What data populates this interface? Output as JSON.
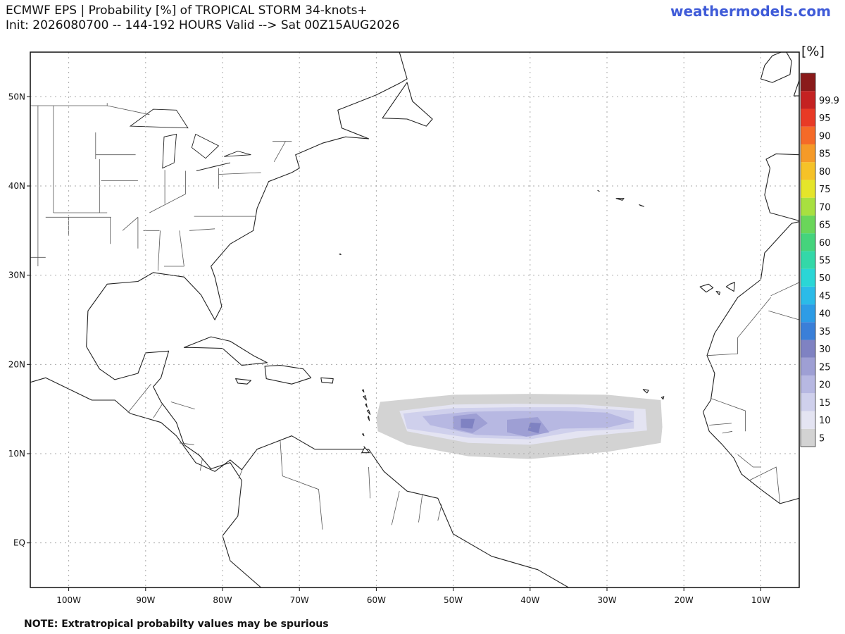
{
  "header": {
    "title_line1": "ECMWF EPS | Probability [%] of TROPICAL STORM 34-knots+",
    "title_line2": "Init: 2026080700 -- 144-192 HOURS Valid --> Sat 00Z15AUG2026",
    "site": "weathermodels.com"
  },
  "footer": {
    "note": "NOTE: Extratropical probabilty values may be spurious"
  },
  "legend": {
    "unit": "[%]",
    "levels": [
      {
        "label": "5",
        "color": "#d3d3d3"
      },
      {
        "label": "10",
        "color": "#e4e4f2"
      },
      {
        "label": "15",
        "color": "#cfd0ec"
      },
      {
        "label": "20",
        "color": "#b7b8e2"
      },
      {
        "label": "25",
        "color": "#9e9fd4"
      },
      {
        "label": "30",
        "color": "#7f82c2"
      },
      {
        "label": "35",
        "color": "#3a7fd8"
      },
      {
        "label": "40",
        "color": "#2d9ce6"
      },
      {
        "label": "45",
        "color": "#2bbbe8"
      },
      {
        "label": "50",
        "color": "#2ad6d6"
      },
      {
        "label": "55",
        "color": "#33d8a8"
      },
      {
        "label": "60",
        "color": "#45d47c"
      },
      {
        "label": "65",
        "color": "#6ad65a"
      },
      {
        "label": "70",
        "color": "#a8e040"
      },
      {
        "label": "75",
        "color": "#e5e52a"
      },
      {
        "label": "80",
        "color": "#f5c228"
      },
      {
        "label": "85",
        "color": "#f59a28"
      },
      {
        "label": "90",
        "color": "#f56a28"
      },
      {
        "label": "95",
        "color": "#e83a26"
      },
      {
        "label": "99.9",
        "color": "#c42222"
      },
      {
        "label": "",
        "color": "#8a1a1a"
      }
    ]
  },
  "map": {
    "lon_range": [
      -105,
      -5
    ],
    "lat_range": [
      -5,
      55
    ],
    "lon_labels": [
      "100W",
      "90W",
      "80W",
      "70W",
      "60W",
      "50W",
      "40W",
      "30W",
      "20W",
      "10W"
    ],
    "lat_labels": [
      "EQ",
      "10N",
      "20N",
      "30N",
      "40N",
      "50N"
    ],
    "probability_field": {
      "level_5": [
        [
          -59.5,
          15.8
        ],
        [
          -50,
          16.6
        ],
        [
          -40,
          16.7
        ],
        [
          -30,
          16.6
        ],
        [
          -23,
          16
        ],
        [
          -22.8,
          13
        ],
        [
          -23,
          11.2
        ],
        [
          -30,
          10.2
        ],
        [
          -40,
          9.4
        ],
        [
          -48,
          9.7
        ],
        [
          -56,
          11
        ],
        [
          -59.8,
          12.5
        ],
        [
          -60,
          14
        ]
      ],
      "level_10": [
        [
          -57,
          14.8
        ],
        [
          -50,
          15.5
        ],
        [
          -42,
          15.6
        ],
        [
          -33,
          15.5
        ],
        [
          -25,
          15
        ],
        [
          -24.8,
          12.6
        ],
        [
          -32,
          12
        ],
        [
          -40,
          11
        ],
        [
          -48,
          11.2
        ],
        [
          -56,
          12.5
        ]
      ],
      "level_15": [
        [
          -56.5,
          14.5
        ],
        [
          -50,
          15.1
        ],
        [
          -42,
          15.2
        ],
        [
          -34,
          15.2
        ],
        [
          -26.5,
          14.8
        ],
        [
          -26.5,
          12.8
        ],
        [
          -34,
          12.5
        ],
        [
          -40,
          11.6
        ],
        [
          -48,
          11.8
        ],
        [
          -56,
          12.8
        ]
      ],
      "level_20": [
        [
          -54,
          14.2
        ],
        [
          -48,
          14.7
        ],
        [
          -42,
          14.8
        ],
        [
          -36,
          14.8
        ],
        [
          -30,
          14.6
        ],
        [
          -26.5,
          13.6
        ],
        [
          -30,
          12.9
        ],
        [
          -36,
          12.8
        ],
        [
          -40,
          11.9
        ],
        [
          -47,
          12.1
        ],
        [
          -53,
          13.2
        ]
      ],
      "level_25": [
        [
          [
            -50,
            14.2
          ],
          [
            -47,
            14.5
          ],
          [
            -45.5,
            13.4
          ],
          [
            -47.5,
            12.3
          ],
          [
            -50,
            12.8
          ]
        ],
        [
          [
            -43,
            13.8
          ],
          [
            -39,
            14.1
          ],
          [
            -37.5,
            12.4
          ],
          [
            -40.5,
            11.9
          ],
          [
            -43,
            12.4
          ]
        ]
      ],
      "level_30": [
        [
          [
            -49,
            13.9
          ],
          [
            -47.2,
            13.9
          ],
          [
            -47.5,
            12.8
          ],
          [
            -49,
            12.9
          ]
        ],
        [
          [
            -40,
            13.5
          ],
          [
            -38.6,
            13.4
          ],
          [
            -38.9,
            12.3
          ],
          [
            -40.3,
            12.6
          ]
        ]
      ]
    },
    "land": {
      "north_america": [
        [
          -105,
          55
        ],
        [
          -105,
          18
        ],
        [
          -103,
          18.5
        ],
        [
          -97,
          16
        ],
        [
          -94,
          16
        ],
        [
          -92,
          14.5
        ],
        [
          -88,
          13.5
        ],
        [
          -86,
          12
        ],
        [
          -83.5,
          9
        ],
        [
          -81,
          8
        ],
        [
          -79,
          9.3
        ],
        [
          -77.5,
          8.2
        ],
        [
          -75.5,
          10.5
        ],
        [
          -71,
          12
        ],
        [
          -68,
          10.5
        ],
        [
          -64,
          10.5
        ],
        [
          -61,
          10.5
        ],
        [
          -59,
          8
        ],
        [
          -56,
          5.8
        ],
        [
          -52,
          5
        ],
        [
          -50,
          1
        ],
        [
          -45,
          -1.5
        ],
        [
          -39,
          -3
        ],
        [
          -35,
          -5
        ],
        [
          -75,
          -5
        ],
        [
          -79,
          -2
        ],
        [
          -80,
          0.8
        ],
        [
          -78,
          3
        ],
        [
          -77.5,
          7
        ],
        [
          -79,
          9
        ],
        [
          -81.5,
          8.3
        ],
        [
          -83,
          9.8
        ],
        [
          -85,
          11
        ],
        [
          -86,
          13.5
        ],
        [
          -88,
          15.8
        ],
        [
          -89,
          17.5
        ],
        [
          -88,
          18.5
        ],
        [
          -87,
          21.5
        ],
        [
          -90,
          21.3
        ],
        [
          -91,
          19
        ],
        [
          -94,
          18.3
        ],
        [
          -96,
          19.5
        ],
        [
          -97.7,
          22
        ],
        [
          -97.5,
          26
        ],
        [
          -95,
          29
        ],
        [
          -91,
          29.3
        ],
        [
          -89,
          30.3
        ],
        [
          -85,
          29.8
        ],
        [
          -82.8,
          27.8
        ],
        [
          -81,
          25
        ],
        [
          -80.1,
          26.5
        ],
        [
          -81,
          29.8
        ],
        [
          -81.5,
          31
        ],
        [
          -79,
          33.5
        ],
        [
          -76,
          35
        ],
        [
          -75.5,
          37.5
        ],
        [
          -74,
          40.5
        ],
        [
          -71,
          41.5
        ],
        [
          -70,
          42
        ],
        [
          -70.5,
          43.5
        ],
        [
          -67,
          44.8
        ],
        [
          -64,
          45.5
        ],
        [
          -61,
          45.3
        ],
        [
          -64.5,
          46.5
        ],
        [
          -65,
          48.5
        ],
        [
          -60,
          50.2
        ],
        [
          -57,
          51.5
        ],
        [
          -56,
          52
        ],
        [
          -57,
          55
        ]
      ],
      "cuba": [
        [
          -85,
          21.9
        ],
        [
          -81.5,
          23.1
        ],
        [
          -79,
          22.6
        ],
        [
          -76,
          21
        ],
        [
          -74.2,
          20.2
        ],
        [
          -77.5,
          19.9
        ],
        [
          -80,
          21.8
        ],
        [
          -84,
          21.9
        ]
      ],
      "hispaniola": [
        [
          -74.5,
          19.8
        ],
        [
          -72.5,
          19.9
        ],
        [
          -69.5,
          19.5
        ],
        [
          -68.5,
          18.5
        ],
        [
          -71,
          17.8
        ],
        [
          -74.3,
          18.4
        ]
      ],
      "jamaica": [
        [
          -78.3,
          18.4
        ],
        [
          -76.3,
          18.2
        ],
        [
          -76.8,
          17.8
        ],
        [
          -78,
          17.9
        ]
      ],
      "puerto_rico": [
        [
          -67.2,
          18.5
        ],
        [
          -65.6,
          18.4
        ],
        [
          -65.7,
          17.9
        ],
        [
          -67.1,
          18
        ]
      ],
      "newfoundland": [
        [
          -59.2,
          47.6
        ],
        [
          -56,
          51.6
        ],
        [
          -55.3,
          49.5
        ],
        [
          -52.7,
          47.5
        ],
        [
          -53.5,
          46.7
        ],
        [
          -56,
          47.5
        ]
      ],
      "africa": [
        [
          -5,
          55
        ],
        [
          -5,
          36
        ],
        [
          -6,
          35.8
        ],
        [
          -9.5,
          32.5
        ],
        [
          -10,
          29.5
        ],
        [
          -13,
          27.5
        ],
        [
          -16,
          23.5
        ],
        [
          -17,
          21
        ],
        [
          -16,
          19
        ],
        [
          -16.5,
          16
        ],
        [
          -17.5,
          14.7
        ],
        [
          -16.7,
          12.5
        ],
        [
          -15,
          11
        ],
        [
          -13.5,
          9.5
        ],
        [
          -12.5,
          7.7
        ],
        [
          -10,
          6
        ],
        [
          -7.5,
          4.4
        ],
        [
          -5,
          5
        ],
        [
          -5,
          -5
        ],
        [
          5,
          -5
        ],
        [
          5,
          55
        ]
      ],
      "iberia": [
        [
          -5,
          43.5
        ],
        [
          -8,
          43.6
        ],
        [
          -9.3,
          43
        ],
        [
          -8.8,
          42
        ],
        [
          -9.5,
          39
        ],
        [
          -8.8,
          37
        ],
        [
          -5,
          36.1
        ]
      ],
      "ireland": [
        [
          -10,
          52
        ],
        [
          -9.5,
          53.5
        ],
        [
          -8.5,
          54.6
        ],
        [
          -6.8,
          55.2
        ],
        [
          -6,
          54
        ],
        [
          -6.2,
          52.5
        ],
        [
          -8.5,
          51.6
        ]
      ],
      "great_britain": [
        [
          -5,
          50.1
        ],
        [
          -5.7,
          50.1
        ],
        [
          -5.1,
          51.6
        ],
        [
          -4.5,
          53.3
        ],
        [
          -5,
          53.9
        ],
        [
          -5,
          55
        ]
      ],
      "canary_islands": [
        [
          [
            -17.9,
            28.7
          ],
          [
            -17.1,
            28.1
          ],
          [
            -16.2,
            28.6
          ],
          [
            -16.8,
            29
          ]
        ],
        [
          [
            -15.8,
            28.2
          ],
          [
            -15.4,
            27.8
          ],
          [
            -15.3,
            28.1
          ]
        ],
        [
          [
            -14.5,
            28.7
          ],
          [
            -13.5,
            28.2
          ],
          [
            -13.4,
            29.2
          ],
          [
            -14,
            29
          ]
        ]
      ],
      "cape_verde": [
        [
          [
            -25.3,
            17.2
          ],
          [
            -24.8,
            16.8
          ],
          [
            -24.6,
            17.1
          ]
        ],
        [
          [
            -23.8,
            15.3
          ],
          [
            -23.4,
            14.9
          ],
          [
            -23.5,
            15.4
          ]
        ],
        [
          [
            -22.9,
            16.3
          ],
          [
            -22.7,
            16.1
          ],
          [
            -22.6,
            16.4
          ]
        ]
      ],
      "azores": [
        [
          [
            -28.8,
            38.6
          ],
          [
            -28,
            38.4
          ],
          [
            -27.8,
            38.6
          ]
        ],
        [
          [
            -25.8,
            37.9
          ],
          [
            -25.2,
            37.7
          ],
          [
            -25.6,
            37.8
          ]
        ],
        [
          [
            -31.2,
            39.5
          ],
          [
            -31,
            39.4
          ]
        ]
      ],
      "bermuda": [
        [
          -64.8,
          32.35
        ],
        [
          -64.6,
          32.3
        ],
        [
          -64.7,
          32.4
        ]
      ],
      "lesser_antilles": [
        [
          [
            -61.8,
            17.1
          ],
          [
            -61.6,
            16.9
          ],
          [
            -61.7,
            17.2
          ]
        ],
        [
          [
            -61.7,
            16.4
          ],
          [
            -61.3,
            16
          ],
          [
            -61.4,
            16.5
          ]
        ],
        [
          [
            -61.4,
            15.5
          ],
          [
            -61.2,
            15.2
          ],
          [
            -61.3,
            15.6
          ]
        ],
        [
          [
            -61.2,
            14.8
          ],
          [
            -60.8,
            14.4
          ],
          [
            -61,
            14.9
          ]
        ],
        [
          [
            -61.1,
            14.1
          ],
          [
            -60.9,
            13.7
          ],
          [
            -61.0,
            14.2
          ]
        ],
        [
          [
            -59.6,
            13.3
          ],
          [
            -59.4,
            13.1
          ],
          [
            -59.5,
            13.35
          ]
        ],
        [
          [
            -61.8,
            12.2
          ],
          [
            -61.6,
            12
          ],
          [
            -61.7,
            12.25
          ]
        ],
        [
          [
            -61.6,
            10.8
          ],
          [
            -60.9,
            10.1
          ],
          [
            -61.9,
            10.1
          ],
          [
            -61.5,
            10.7
          ]
        ]
      ],
      "lakes": [
        [
          [
            -92,
            46.7
          ],
          [
            -84.5,
            46.5
          ],
          [
            -86,
            48.5
          ],
          [
            -89,
            48.6
          ]
        ],
        [
          [
            -87.8,
            42
          ],
          [
            -86.3,
            42.6
          ],
          [
            -86,
            45.8
          ],
          [
            -87.6,
            45.5
          ]
        ],
        [
          [
            -83.5,
            45.8
          ],
          [
            -80.5,
            44.5
          ],
          [
            -82.2,
            43.1
          ],
          [
            -84,
            44.3
          ]
        ],
        [
          [
            -83.4,
            41.7
          ],
          [
            -79,
            42.6
          ],
          [
            -81,
            42.2
          ]
        ],
        [
          [
            -79.8,
            43.3
          ],
          [
            -76.3,
            43.5
          ],
          [
            -78,
            43.9
          ]
        ]
      ]
    }
  }
}
